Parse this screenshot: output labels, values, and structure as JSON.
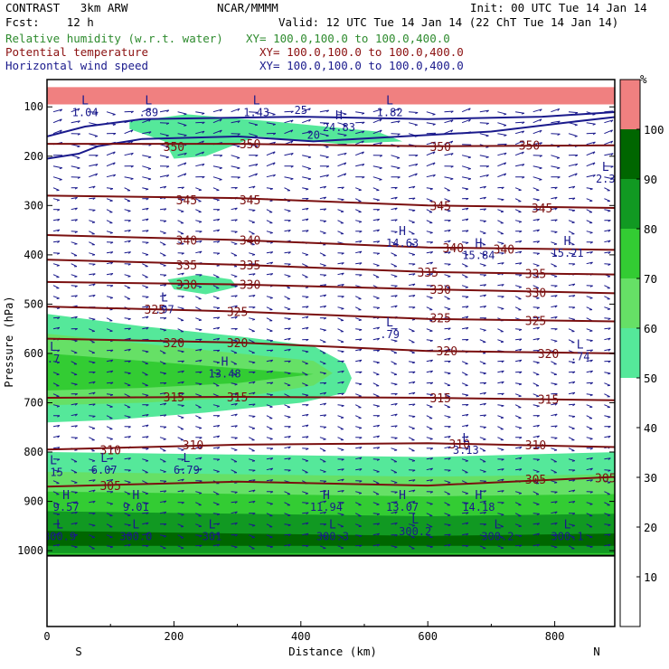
{
  "header": {
    "model": "CONTRAST   3km ARW",
    "center": "NCAR/MMMM",
    "init": "Init: 00 UTC Tue 14 Jan 14",
    "fcst": "Fcst:    12 h",
    "valid": "Valid: 12 UTC Tue 14 Jan 14 (22 ChT Tue 14 Jan 14)",
    "fields": [
      {
        "name": "Relative humidity (w.r.t. water)",
        "xy": "XY= 100.0,100.0 to 100.0,400.0",
        "color": "#2e8b2e"
      },
      {
        "name": "Potential temperature",
        "xy": "XY= 100.0,100.0 to 100.0,400.0",
        "color": "#8b1010"
      },
      {
        "name": "Horizontal wind speed",
        "xy": "XY= 100.0,100.0 to 100.0,400.0",
        "color": "#1a1a8c"
      }
    ]
  },
  "chart_data": {
    "type": "heatmap",
    "xlabel": "Distance (km)",
    "ylabel": "Pressure (hPa)",
    "xlim": [
      0,
      900
    ],
    "ylim": [
      1010,
      60
    ],
    "x_ticks": [
      "0",
      "200",
      "400",
      "600",
      "800"
    ],
    "y_ticks": [
      "100",
      "200",
      "300",
      "400",
      "500",
      "600",
      "700",
      "800",
      "900",
      "1000"
    ],
    "x_end_labels": {
      "left": "S",
      "right": "N"
    },
    "colorbar": {
      "unit": "%",
      "levels": [
        "10",
        "20",
        "30",
        "40",
        "50",
        "60",
        "70",
        "80",
        "90",
        "100"
      ],
      "colors": [
        "#ffffff",
        "#ffffff",
        "#ffffff",
        "#ffffff",
        "#ffffff",
        "#55e89a",
        "#66e066",
        "#33cc33",
        "#119922",
        "#006600",
        "#f08080"
      ]
    },
    "rh_regions": [
      {
        "level": 55,
        "polygon": [
          [
            0,
            520
          ],
          [
            150,
            545
          ],
          [
            300,
            565
          ],
          [
            420,
            585
          ],
          [
            470,
            620
          ],
          [
            480,
            650
          ],
          [
            470,
            680
          ],
          [
            400,
            700
          ],
          [
            250,
            720
          ],
          [
            100,
            735
          ],
          [
            0,
            740
          ]
        ]
      },
      {
        "level": 65,
        "polygon": [
          [
            0,
            560
          ],
          [
            150,
            580
          ],
          [
            300,
            600
          ],
          [
            420,
            615
          ],
          [
            450,
            640
          ],
          [
            420,
            665
          ],
          [
            300,
            690
          ],
          [
            150,
            700
          ],
          [
            0,
            705
          ]
        ]
      },
      {
        "level": 75,
        "polygon": [
          [
            0,
            600
          ],
          [
            150,
            615
          ],
          [
            300,
            630
          ],
          [
            420,
            642
          ],
          [
            300,
            660
          ],
          [
            150,
            670
          ],
          [
            0,
            675
          ]
        ]
      },
      {
        "level": 55,
        "polygon": [
          [
            130,
            130
          ],
          [
            220,
            115
          ],
          [
            360,
            130
          ],
          [
            520,
            150
          ],
          [
            560,
            170
          ],
          [
            460,
            175
          ],
          [
            330,
            160
          ],
          [
            250,
            200
          ],
          [
            200,
            205
          ],
          [
            185,
            170
          ],
          [
            130,
            145
          ]
        ]
      },
      {
        "level": 55,
        "polygon": [
          [
            190,
            450
          ],
          [
            240,
            440
          ],
          [
            290,
            450
          ],
          [
            300,
            465
          ],
          [
            250,
            480
          ],
          [
            200,
            470
          ]
        ]
      },
      {
        "level": 55,
        "polygon": [
          [
            0,
            800
          ],
          [
            300,
            805
          ],
          [
            600,
            810
          ],
          [
            900,
            800
          ],
          [
            900,
            1010
          ],
          [
            0,
            1010
          ]
        ]
      },
      {
        "level": 65,
        "polygon": [
          [
            0,
            840
          ],
          [
            300,
            845
          ],
          [
            600,
            850
          ],
          [
            900,
            845
          ],
          [
            900,
            1010
          ],
          [
            0,
            1010
          ]
        ]
      },
      {
        "level": 75,
        "polygon": [
          [
            0,
            880
          ],
          [
            300,
            885
          ],
          [
            600,
            890
          ],
          [
            900,
            885
          ],
          [
            900,
            1010
          ],
          [
            0,
            1010
          ]
        ]
      },
      {
        "level": 85,
        "polygon": [
          [
            0,
            920
          ],
          [
            300,
            925
          ],
          [
            600,
            930
          ],
          [
            900,
            925
          ],
          [
            900,
            1005
          ],
          [
            0,
            1005
          ]
        ]
      },
      {
        "level": 95,
        "polygon": [
          [
            0,
            960
          ],
          [
            300,
            965
          ],
          [
            600,
            970
          ],
          [
            900,
            965
          ],
          [
            900,
            990
          ],
          [
            0,
            990
          ]
        ]
      },
      {
        "level": 100,
        "polygon": [
          [
            0,
            60
          ],
          [
            900,
            60
          ],
          [
            900,
            95
          ],
          [
            0,
            95
          ]
        ]
      }
    ],
    "theta_contours": [
      {
        "label": "350",
        "points": [
          [
            0,
            175
          ],
          [
            300,
            175
          ],
          [
            600,
            180
          ],
          [
            900,
            178
          ]
        ],
        "labels_at": [
          [
            200,
            180
          ],
          [
            320,
            175
          ],
          [
            620,
            180
          ],
          [
            760,
            178
          ]
        ]
      },
      {
        "label": "345",
        "points": [
          [
            0,
            280
          ],
          [
            300,
            285
          ],
          [
            600,
            300
          ],
          [
            900,
            305
          ]
        ],
        "labels_at": [
          [
            220,
            288
          ],
          [
            320,
            288
          ],
          [
            620,
            300
          ],
          [
            780,
            305
          ]
        ]
      },
      {
        "label": "340",
        "points": [
          [
            0,
            360
          ],
          [
            300,
            370
          ],
          [
            600,
            385
          ],
          [
            900,
            390
          ]
        ],
        "labels_at": [
          [
            220,
            370
          ],
          [
            320,
            370
          ],
          [
            640,
            386
          ],
          [
            720,
            388
          ]
        ]
      },
      {
        "label": "335",
        "points": [
          [
            0,
            410
          ],
          [
            300,
            420
          ],
          [
            600,
            435
          ],
          [
            900,
            440
          ]
        ],
        "labels_at": [
          [
            220,
            420
          ],
          [
            320,
            420
          ],
          [
            600,
            435
          ],
          [
            770,
            438
          ]
        ]
      },
      {
        "label": "330",
        "points": [
          [
            0,
            455
          ],
          [
            300,
            460
          ],
          [
            600,
            470
          ],
          [
            900,
            478
          ]
        ],
        "labels_at": [
          [
            220,
            460
          ],
          [
            320,
            460
          ],
          [
            620,
            470
          ],
          [
            770,
            476
          ]
        ]
      },
      {
        "label": "325",
        "points": [
          [
            0,
            505
          ],
          [
            300,
            515
          ],
          [
            600,
            530
          ],
          [
            900,
            535
          ]
        ],
        "labels_at": [
          [
            170,
            510
          ],
          [
            300,
            515
          ],
          [
            620,
            528
          ],
          [
            770,
            533
          ]
        ]
      },
      {
        "label": "320",
        "points": [
          [
            0,
            570
          ],
          [
            300,
            578
          ],
          [
            600,
            595
          ],
          [
            900,
            600
          ]
        ],
        "labels_at": [
          [
            200,
            578
          ],
          [
            300,
            578
          ],
          [
            630,
            595
          ],
          [
            790,
            600
          ]
        ]
      },
      {
        "label": "315",
        "points": [
          [
            0,
            690
          ],
          [
            300,
            688
          ],
          [
            600,
            690
          ],
          [
            900,
            695
          ]
        ],
        "labels_at": [
          [
            200,
            688
          ],
          [
            300,
            688
          ],
          [
            620,
            690
          ],
          [
            790,
            693
          ]
        ]
      },
      {
        "label": "310",
        "points": [
          [
            0,
            795
          ],
          [
            300,
            785
          ],
          [
            600,
            782
          ],
          [
            900,
            790
          ]
        ],
        "labels_at": [
          [
            100,
            795
          ],
          [
            230,
            785
          ],
          [
            650,
            783
          ],
          [
            770,
            785
          ]
        ]
      },
      {
        "label": "305",
        "points": [
          [
            0,
            870
          ],
          [
            300,
            860
          ],
          [
            600,
            868
          ],
          [
            900,
            850
          ]
        ],
        "labels_at": [
          [
            100,
            868
          ],
          [
            770,
            855
          ],
          [
            880,
            852
          ]
        ]
      }
    ],
    "wind_contours": [
      {
        "label": "20",
        "points": [
          [
            0,
            205
          ],
          [
            50,
            195
          ],
          [
            80,
            180
          ],
          [
            150,
            165
          ],
          [
            300,
            160
          ],
          [
            420,
            170
          ],
          [
            560,
            160
          ],
          [
            700,
            150
          ],
          [
            830,
            130
          ],
          [
            900,
            120
          ]
        ]
      },
      {
        "label": "25",
        "points": [
          [
            0,
            160
          ],
          [
            60,
            140
          ],
          [
            150,
            125
          ],
          [
            400,
            120
          ],
          [
            600,
            125
          ],
          [
            780,
            120
          ],
          [
            900,
            110
          ]
        ]
      }
    ],
    "annotations": [
      {
        "kind": "L",
        "value": "1.04",
        "x": 60,
        "p": 95
      },
      {
        "kind": "L",
        "value": ".89",
        "x": 160,
        "p": 95
      },
      {
        "kind": "L",
        "value": "1.43",
        "x": 330,
        "p": 95
      },
      {
        "kind": "L",
        "value": "1.82",
        "x": 540,
        "p": 95
      },
      {
        "kind": "L",
        "value": "2.3",
        "x": 880,
        "p": 230
      },
      {
        "kind": "H",
        "value": "24.83",
        "x": 460,
        "p": 125
      },
      {
        "kind": "H",
        "value": "14.63",
        "x": 560,
        "p": 360
      },
      {
        "kind": "H",
        "value": "15.84",
        "x": 680,
        "p": 385
      },
      {
        "kind": "H",
        "value": "15.21",
        "x": 820,
        "p": 380
      },
      {
        "kind": "L",
        "value": ".97",
        "x": 185,
        "p": 495
      },
      {
        "kind": "L",
        "value": ".79",
        "x": 540,
        "p": 545
      },
      {
        "kind": "L",
        "value": ".74",
        "x": 840,
        "p": 590
      },
      {
        "kind": "L",
        "value": ".7",
        "x": 10,
        "p": 595
      },
      {
        "kind": "H",
        "value": "13.48",
        "x": 280,
        "p": 625
      },
      {
        "kind": "L",
        "value": "3.13",
        "x": 660,
        "p": 780
      },
      {
        "kind": "L",
        "value": "6.07",
        "x": 90,
        "p": 820
      },
      {
        "kind": "L",
        "value": "6.79",
        "x": 220,
        "p": 820
      },
      {
        "kind": "L",
        "value": ".15",
        "x": 10,
        "p": 825
      },
      {
        "kind": "H",
        "value": "9.57",
        "x": 30,
        "p": 895
      },
      {
        "kind": "H",
        "value": "9.01",
        "x": 140,
        "p": 895
      },
      {
        "kind": "H",
        "value": "11.94",
        "x": 440,
        "p": 895
      },
      {
        "kind": "H",
        "value": "13.07",
        "x": 560,
        "p": 895
      },
      {
        "kind": "H",
        "value": "14.18",
        "x": 680,
        "p": 895
      },
      {
        "kind": "L",
        "value": "300.9",
        "x": 20,
        "p": 955
      },
      {
        "kind": "L",
        "value": "300.0",
        "x": 140,
        "p": 955
      },
      {
        "kind": "L",
        "value": "301",
        "x": 260,
        "p": 955
      },
      {
        "kind": "L",
        "value": "300.3",
        "x": 450,
        "p": 955
      },
      {
        "kind": "L",
        "value": "300.2",
        "x": 580,
        "p": 945
      },
      {
        "kind": "L",
        "value": "300.2",
        "x": 710,
        "p": 955
      },
      {
        "kind": "L",
        "value": "300.1",
        "x": 820,
        "p": 955
      }
    ]
  }
}
